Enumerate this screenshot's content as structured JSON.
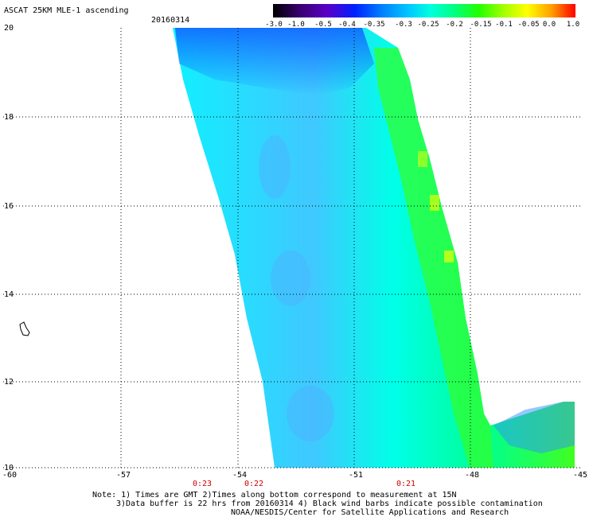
{
  "title": "ASCAT 25KM MLE-1 ascending",
  "date": "20160314",
  "colorbar": {
    "labels": [
      "-3.0",
      "-1.0",
      "-0.5",
      "-0.4",
      "-0.35",
      "-0.3",
      "-0.25",
      "-0.2",
      "-0.15",
      "-0.1",
      "-0.05",
      "0.0",
      "1.0"
    ],
    "colors": [
      "#000000",
      "#3a0070",
      "#5a00c8",
      "#0020ff",
      "#0080ff",
      "#00c8ff",
      "#00ffe0",
      "#00ff80",
      "#20ff00",
      "#a0ff00",
      "#ffff00",
      "#ffa000",
      "#ff0000"
    ]
  },
  "lat_labels": [
    "20",
    "18",
    "16",
    "14",
    "12",
    "10"
  ],
  "lon_labels": [
    "-60",
    "-57",
    "-54",
    "-51",
    "-48",
    "-45"
  ],
  "time_labels": [
    "0:23",
    "0:22",
    "0:21"
  ],
  "notes": [
    "Note: 1) Times are GMT 2)Times along bottom correspond to measurement at 15N",
    "3)Data buffer is 22 hrs from 20160314 4) Black wind barbs indicate possible contamination",
    "NOAA/NESDIS/Center for Satellite Applications and Research"
  ]
}
